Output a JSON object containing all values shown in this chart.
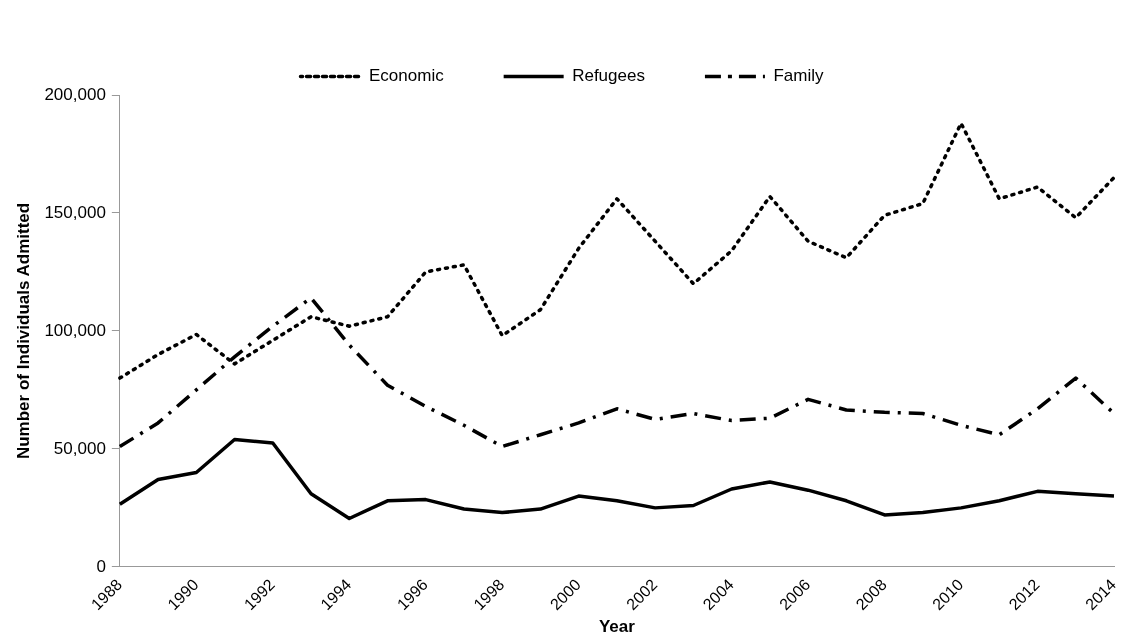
{
  "chart_data": {
    "type": "line",
    "xlabel": "Year",
    "ylabel": "Number of Individuals Admitted",
    "categories": [
      "1988",
      null,
      "1990",
      null,
      "1992",
      null,
      "1994",
      null,
      "1996",
      null,
      "1998",
      null,
      "2000",
      null,
      "2002",
      null,
      "2004",
      null,
      "2006",
      null,
      "2008",
      null,
      "2010",
      null,
      "2012",
      null,
      "2014"
    ],
    "series": [
      {
        "name": "Economic",
        "color": "#000000",
        "line_style": "dotted",
        "values": [
          80000,
          90000,
          98500,
          86000,
          96000,
          106000,
          102000,
          106000,
          125000,
          128000,
          98000,
          109000,
          135000,
          156000,
          138000,
          120000,
          134000,
          157000,
          138000,
          131000,
          149000,
          154000,
          188000,
          156000,
          161000,
          148000,
          165000
        ]
      },
      {
        "name": "Refugees",
        "color": "#000000",
        "line_style": "solid",
        "values": [
          26500,
          37000,
          40000,
          54000,
          52500,
          31000,
          20500,
          28000,
          28500,
          24500,
          23000,
          24500,
          30000,
          28000,
          25000,
          26000,
          33000,
          36000,
          32500,
          28000,
          22000,
          23000,
          25000,
          28000,
          32000,
          31000,
          30000
        ]
      },
      {
        "name": "Family",
        "color": "#000000",
        "line_style": "dashed",
        "values": [
          51000,
          61000,
          75000,
          89000,
          102000,
          114000,
          94000,
          77000,
          68000,
          60000,
          51000,
          56000,
          61000,
          67000,
          62500,
          65000,
          62000,
          63000,
          71000,
          66500,
          65500,
          65000,
          60000,
          56000,
          67000,
          80000,
          65000
        ]
      }
    ],
    "ylim": [
      0,
      200000
    ],
    "yticks": [
      0,
      {
        "value": 50000,
        "label": "50,000"
      },
      {
        "value": 100000,
        "label": "100,000"
      },
      {
        "value": 150000,
        "label": "150,000"
      },
      {
        "value": 200000,
        "label": "200,000"
      }
    ],
    "grid": false,
    "legend": "top",
    "marker": "none"
  }
}
